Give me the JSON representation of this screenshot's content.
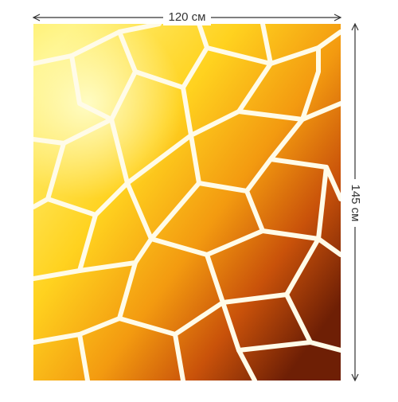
{
  "dimensions": {
    "width_label": "120 см",
    "height_label": "145 см"
  }
}
